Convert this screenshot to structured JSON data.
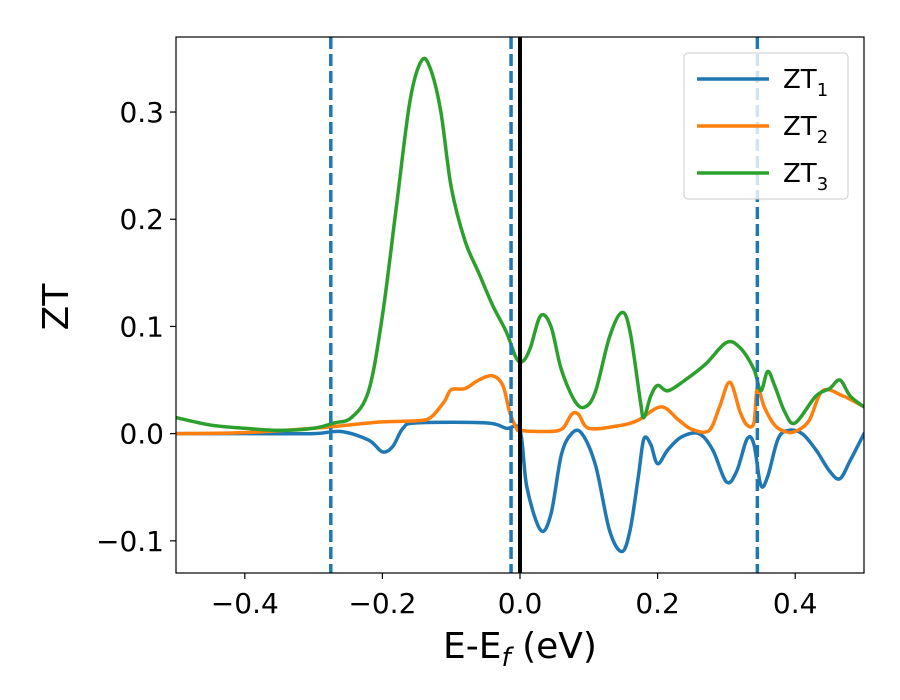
{
  "chart_data": {
    "type": "line",
    "xlabel": "E-E",
    "xlabel_sub": "f",
    "xlabel_unit": " (eV)",
    "ylabel": "ZT",
    "xlim": [
      -0.5,
      0.5
    ],
    "ylim": [
      -0.13,
      0.37
    ],
    "xticks": [
      -0.4,
      -0.2,
      0.0,
      0.2,
      0.4
    ],
    "xtick_labels": [
      "−0.4",
      "−0.2",
      "0.0",
      "0.2",
      "0.4"
    ],
    "yticks": [
      -0.1,
      0.0,
      0.1,
      0.2,
      0.3
    ],
    "ytick_labels": [
      "−0.1",
      "0.0",
      "0.1",
      "0.2",
      "0.3"
    ],
    "grid": false,
    "legend_position": "top-right",
    "vlines": [
      {
        "x": -0.275,
        "style": "dashed",
        "color": "#1f77b4"
      },
      {
        "x": -0.013,
        "style": "dashed",
        "color": "#1f77b4"
      },
      {
        "x": 0.345,
        "style": "dashed",
        "color": "#1f77b4"
      },
      {
        "x": 0.0,
        "style": "solid",
        "color": "#000000"
      }
    ],
    "series": [
      {
        "name": "ZT",
        "name_sub": "1",
        "color": "#1f77b4",
        "points": [
          [
            -0.5,
            0.0
          ],
          [
            -0.4,
            0.0
          ],
          [
            -0.3,
            0.0
          ],
          [
            -0.26,
            0.002
          ],
          [
            -0.22,
            -0.006
          ],
          [
            -0.2,
            -0.017
          ],
          [
            -0.185,
            -0.012
          ],
          [
            -0.17,
            0.005
          ],
          [
            -0.15,
            0.01
          ],
          [
            -0.05,
            0.01
          ],
          [
            -0.02,
            0.005
          ],
          [
            0.0,
            0.003
          ],
          [
            0.01,
            -0.05
          ],
          [
            0.03,
            -0.09
          ],
          [
            0.045,
            -0.075
          ],
          [
            0.06,
            -0.02
          ],
          [
            0.075,
            0.0
          ],
          [
            0.09,
            0.0
          ],
          [
            0.11,
            -0.03
          ],
          [
            0.13,
            -0.09
          ],
          [
            0.148,
            -0.11
          ],
          [
            0.16,
            -0.09
          ],
          [
            0.172,
            -0.04
          ],
          [
            0.18,
            -0.005
          ],
          [
            0.19,
            -0.01
          ],
          [
            0.2,
            -0.028
          ],
          [
            0.215,
            -0.015
          ],
          [
            0.235,
            -0.003
          ],
          [
            0.26,
            0.0
          ],
          [
            0.28,
            -0.015
          ],
          [
            0.3,
            -0.045
          ],
          [
            0.315,
            -0.035
          ],
          [
            0.33,
            -0.005
          ],
          [
            0.34,
            -0.01
          ],
          [
            0.35,
            -0.048
          ],
          [
            0.36,
            -0.04
          ],
          [
            0.375,
            -0.005
          ],
          [
            0.39,
            0.003
          ],
          [
            0.41,
            0.0
          ],
          [
            0.43,
            -0.015
          ],
          [
            0.45,
            -0.035
          ],
          [
            0.465,
            -0.042
          ],
          [
            0.48,
            -0.025
          ],
          [
            0.5,
            0.0
          ]
        ]
      },
      {
        "name": "ZT",
        "name_sub": "2",
        "color": "#ff7f0e",
        "points": [
          [
            -0.5,
            0.0
          ],
          [
            -0.4,
            0.001
          ],
          [
            -0.3,
            0.005
          ],
          [
            -0.25,
            0.008
          ],
          [
            -0.2,
            0.011
          ],
          [
            -0.15,
            0.012
          ],
          [
            -0.13,
            0.015
          ],
          [
            -0.11,
            0.03
          ],
          [
            -0.1,
            0.041
          ],
          [
            -0.08,
            0.042
          ],
          [
            -0.06,
            0.05
          ],
          [
            -0.04,
            0.054
          ],
          [
            -0.025,
            0.045
          ],
          [
            -0.015,
            0.02
          ],
          [
            -0.005,
            0.005
          ],
          [
            0.0,
            0.003
          ],
          [
            0.03,
            0.002
          ],
          [
            0.06,
            0.004
          ],
          [
            0.075,
            0.018
          ],
          [
            0.085,
            0.018
          ],
          [
            0.1,
            0.005
          ],
          [
            0.14,
            0.007
          ],
          [
            0.17,
            0.012
          ],
          [
            0.205,
            0.025
          ],
          [
            0.23,
            0.013
          ],
          [
            0.25,
            0.004
          ],
          [
            0.275,
            0.003
          ],
          [
            0.29,
            0.025
          ],
          [
            0.305,
            0.048
          ],
          [
            0.32,
            0.02
          ],
          [
            0.33,
            0.008
          ],
          [
            0.34,
            0.01
          ],
          [
            0.345,
            0.043
          ],
          [
            0.355,
            0.025
          ],
          [
            0.37,
            0.008
          ],
          [
            0.385,
            0.002
          ],
          [
            0.4,
            0.002
          ],
          [
            0.42,
            0.012
          ],
          [
            0.44,
            0.04
          ],
          [
            0.47,
            0.035
          ],
          [
            0.5,
            0.025
          ]
        ]
      },
      {
        "name": "ZT",
        "name_sub": "3",
        "color": "#2ca02c",
        "points": [
          [
            -0.5,
            0.015
          ],
          [
            -0.45,
            0.008
          ],
          [
            -0.4,
            0.005
          ],
          [
            -0.35,
            0.003
          ],
          [
            -0.3,
            0.005
          ],
          [
            -0.27,
            0.01
          ],
          [
            -0.245,
            0.015
          ],
          [
            -0.22,
            0.04
          ],
          [
            -0.2,
            0.11
          ],
          [
            -0.18,
            0.21
          ],
          [
            -0.16,
            0.31
          ],
          [
            -0.143,
            0.348
          ],
          [
            -0.13,
            0.34
          ],
          [
            -0.115,
            0.3
          ],
          [
            -0.1,
            0.23
          ],
          [
            -0.08,
            0.18
          ],
          [
            -0.06,
            0.15
          ],
          [
            -0.04,
            0.12
          ],
          [
            -0.02,
            0.095
          ],
          [
            -0.005,
            0.07
          ],
          [
            0.005,
            0.068
          ],
          [
            0.015,
            0.08
          ],
          [
            0.03,
            0.11
          ],
          [
            0.045,
            0.1
          ],
          [
            0.06,
            0.06
          ],
          [
            0.08,
            0.03
          ],
          [
            0.095,
            0.025
          ],
          [
            0.11,
            0.04
          ],
          [
            0.13,
            0.09
          ],
          [
            0.148,
            0.113
          ],
          [
            0.16,
            0.095
          ],
          [
            0.175,
            0.03
          ],
          [
            0.18,
            0.015
          ],
          [
            0.19,
            0.035
          ],
          [
            0.2,
            0.045
          ],
          [
            0.215,
            0.04
          ],
          [
            0.24,
            0.05
          ],
          [
            0.27,
            0.065
          ],
          [
            0.3,
            0.085
          ],
          [
            0.32,
            0.08
          ],
          [
            0.34,
            0.06
          ],
          [
            0.35,
            0.04
          ],
          [
            0.36,
            0.058
          ],
          [
            0.37,
            0.045
          ],
          [
            0.385,
            0.02
          ],
          [
            0.4,
            0.01
          ],
          [
            0.43,
            0.035
          ],
          [
            0.45,
            0.042
          ],
          [
            0.465,
            0.05
          ],
          [
            0.48,
            0.035
          ],
          [
            0.5,
            0.025
          ]
        ]
      }
    ]
  }
}
